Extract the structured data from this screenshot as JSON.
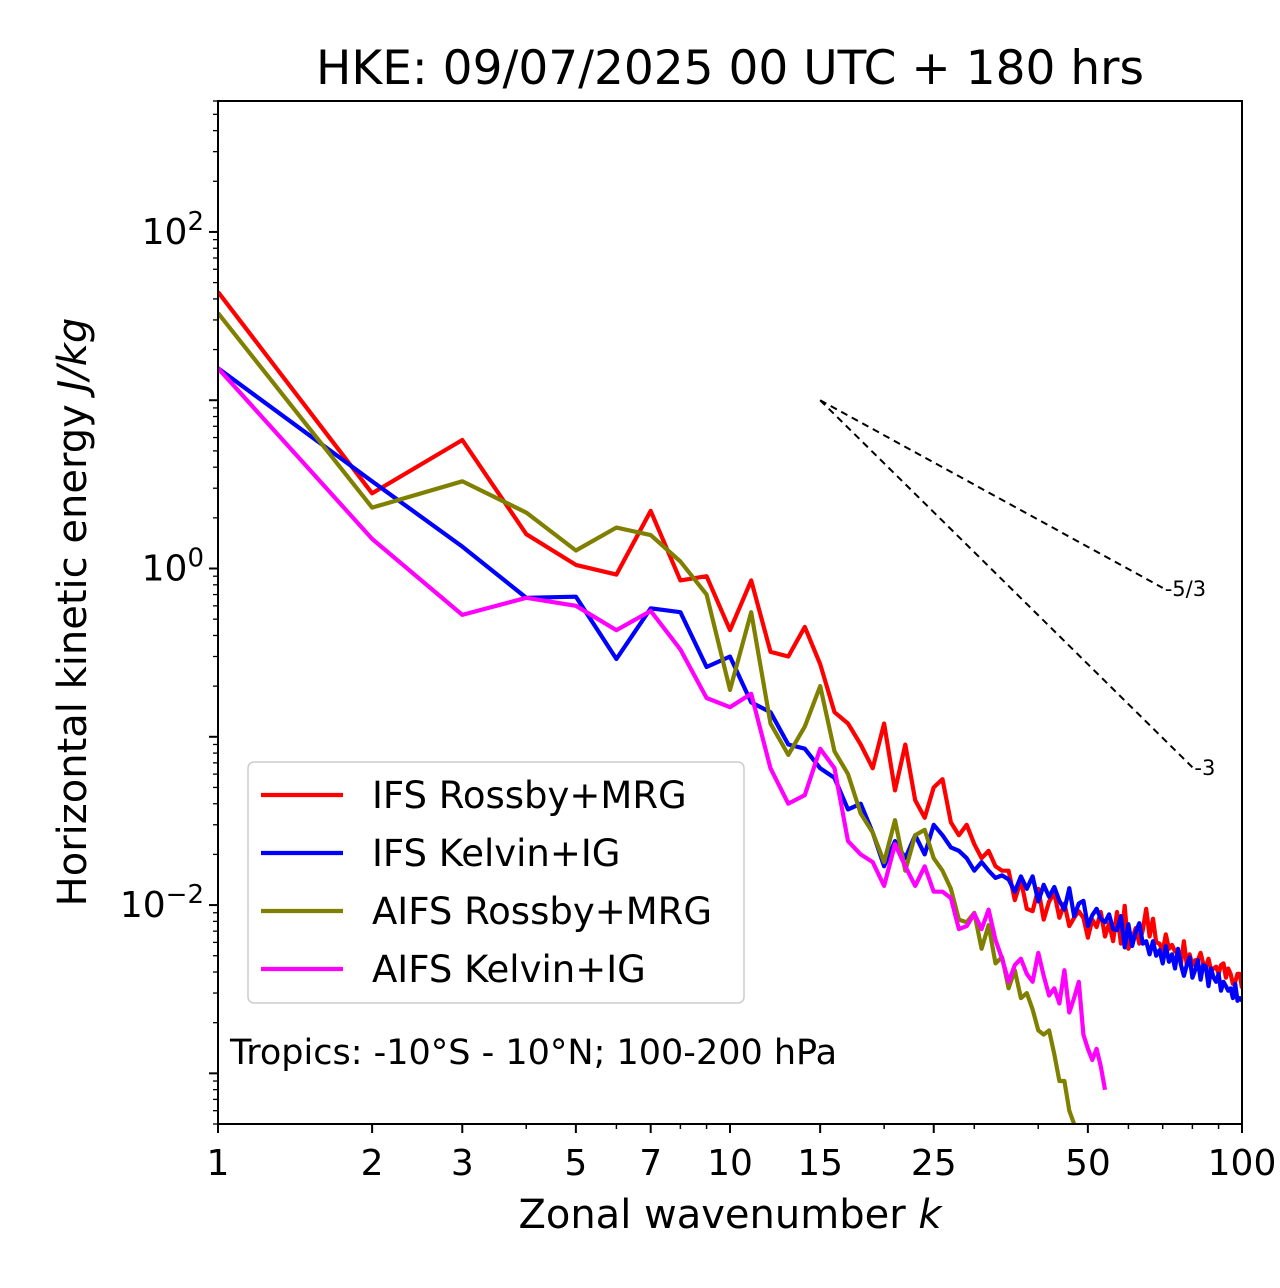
{
  "chart_data": {
    "type": "line",
    "title": "HKE: 09/07/2025 00 UTC + 180 hrs",
    "xlabel": "Zonal wavenumber",
    "xlabel_var": "k",
    "ylabel": "Horizontal kinetic energy",
    "ylabel_unit": "J/kg",
    "xscale": "log",
    "yscale": "log",
    "xlim": [
      1,
      100
    ],
    "ylim": [
      0.0005,
      600
    ],
    "x_ticks": [
      {
        "value": 1,
        "label": "1"
      },
      {
        "value": 2,
        "label": "2"
      },
      {
        "value": 3,
        "label": "3"
      },
      {
        "value": 5,
        "label": "5"
      },
      {
        "value": 7,
        "label": "7"
      },
      {
        "value": 10,
        "label": "10"
      },
      {
        "value": 15,
        "label": "15"
      },
      {
        "value": 25,
        "label": "25"
      },
      {
        "value": 50,
        "label": "50"
      },
      {
        "value": 100,
        "label": "100"
      }
    ],
    "y_ticks": [
      {
        "value": 100,
        "base": "10",
        "exp": "2"
      },
      {
        "value": 1,
        "base": "10",
        "exp": "0"
      },
      {
        "value": 0.01,
        "base": "10",
        "exp": "−2"
      }
    ],
    "annotation": "Tropics: -10°S - 10°N; 100-200 hPa",
    "grid": false,
    "legend_position": "lower-left",
    "reference_slopes": [
      {
        "label": "-5/3",
        "slope": -1.6667,
        "x_start": 15,
        "x_end": 70,
        "y_start": 10
      },
      {
        "label": "-3",
        "slope": -3,
        "x_start": 15,
        "x_end": 80,
        "y_start": 10
      }
    ],
    "series": [
      {
        "name": "IFS Rossby+MRG",
        "color": "#ff0000",
        "x": [
          1,
          2,
          3,
          4,
          5,
          6,
          7,
          8,
          9,
          10,
          11,
          12,
          13,
          14,
          15,
          16,
          17,
          18,
          19,
          20,
          21,
          22,
          23,
          24,
          25,
          26,
          27,
          28,
          29,
          30,
          31,
          32,
          33,
          34,
          35,
          36,
          37,
          38,
          39,
          40,
          41,
          42,
          43,
          44,
          45,
          46,
          47,
          48,
          49,
          50,
          51,
          52,
          53,
          54,
          55,
          56,
          57,
          58,
          59,
          60,
          61,
          62,
          63,
          64,
          65,
          66,
          67,
          68,
          69,
          70,
          71,
          72,
          73,
          74,
          75,
          76,
          77,
          78,
          79,
          80,
          81,
          82,
          83,
          84,
          85,
          86,
          87,
          88,
          89,
          90,
          91,
          92,
          93,
          94,
          95,
          96,
          97,
          98,
          99,
          100
        ],
        "y": [
          44,
          2.8,
          5.8,
          1.6,
          1.05,
          0.92,
          2.2,
          0.85,
          0.9,
          0.43,
          0.85,
          0.32,
          0.3,
          0.45,
          0.27,
          0.14,
          0.12,
          0.09,
          0.065,
          0.12,
          0.048,
          0.09,
          0.042,
          0.033,
          0.05,
          0.056,
          0.031,
          0.026,
          0.03,
          0.023,
          0.019,
          0.021,
          0.017,
          0.016,
          0.016,
          0.0107,
          0.014,
          0.0095,
          0.0092,
          0.0125,
          0.0082,
          0.0105,
          0.0118,
          0.0084,
          0.0102,
          0.0075,
          0.0084,
          0.0092,
          0.0084,
          0.0064,
          0.0082,
          0.0074,
          0.0091,
          0.0065,
          0.0078,
          0.0061,
          0.0091,
          0.0059,
          0.0099,
          0.0055,
          0.0063,
          0.0073,
          0.0059,
          0.0071,
          0.0095,
          0.0065,
          0.0083,
          0.006,
          0.0059,
          0.0053,
          0.0067,
          0.0055,
          0.0058,
          0.0053,
          0.0052,
          0.0045,
          0.0061,
          0.0044,
          0.0051,
          0.0044,
          0.0047,
          0.0047,
          0.0052,
          0.0045,
          0.0043,
          0.0048,
          0.0041,
          0.0042,
          0.0043,
          0.0039,
          0.0044,
          0.0045,
          0.0037,
          0.0042,
          0.0039,
          0.0034,
          0.0035,
          0.0039,
          0.0039,
          0.0032
        ]
      },
      {
        "name": "IFS Kelvin+IG",
        "color": "#0000ff",
        "x": [
          1,
          2,
          3,
          4,
          5,
          6,
          7,
          8,
          9,
          10,
          11,
          12,
          13,
          14,
          15,
          16,
          17,
          18,
          19,
          20,
          21,
          22,
          23,
          24,
          25,
          26,
          27,
          28,
          29,
          30,
          31,
          32,
          33,
          34,
          35,
          36,
          37,
          38,
          39,
          40,
          41,
          42,
          43,
          44,
          45,
          46,
          47,
          48,
          49,
          50,
          51,
          52,
          53,
          54,
          55,
          56,
          57,
          58,
          59,
          60,
          61,
          62,
          63,
          64,
          65,
          66,
          67,
          68,
          69,
          70,
          71,
          72,
          73,
          74,
          75,
          76,
          77,
          78,
          79,
          80,
          81,
          82,
          83,
          84,
          85,
          86,
          87,
          88,
          89,
          90,
          91,
          92,
          93,
          94,
          95,
          96,
          97,
          98,
          99,
          100
        ],
        "y": [
          15.5,
          3.3,
          1.35,
          0.67,
          0.68,
          0.29,
          0.58,
          0.55,
          0.26,
          0.3,
          0.16,
          0.14,
          0.09,
          0.085,
          0.065,
          0.057,
          0.037,
          0.04,
          0.027,
          0.017,
          0.024,
          0.019,
          0.026,
          0.02,
          0.03,
          0.026,
          0.022,
          0.021,
          0.019,
          0.016,
          0.018,
          0.016,
          0.0145,
          0.015,
          0.0142,
          0.012,
          0.0148,
          0.0125,
          0.0148,
          0.0105,
          0.0132,
          0.0112,
          0.0128,
          0.0106,
          0.0094,
          0.0126,
          0.0086,
          0.0102,
          0.0106,
          0.0075,
          0.0087,
          0.0095,
          0.0083,
          0.0079,
          0.0088,
          0.0072,
          0.0071,
          0.0086,
          0.0056,
          0.0077,
          0.0057,
          0.0069,
          0.0078,
          0.0059,
          0.0061,
          0.0051,
          0.0061,
          0.005,
          0.0054,
          0.0045,
          0.0057,
          0.0046,
          0.0051,
          0.0042,
          0.0055,
          0.0044,
          0.0038,
          0.0044,
          0.0049,
          0.0037,
          0.0041,
          0.0047,
          0.0036,
          0.0044,
          0.0043,
          0.0033,
          0.0042,
          0.0037,
          0.0035,
          0.0039,
          0.0031,
          0.0035,
          0.0033,
          0.0031,
          0.0032,
          0.0028,
          0.0034,
          0.0027,
          0.0028,
          0.0027
        ]
      },
      {
        "name": "AIFS Rossby+MRG",
        "color": "#808000",
        "x": [
          1,
          2,
          3,
          4,
          5,
          6,
          7,
          8,
          9,
          10,
          11,
          12,
          13,
          14,
          15,
          16,
          17,
          18,
          19,
          20,
          21,
          22,
          23,
          24,
          25,
          26,
          27,
          28,
          29,
          30,
          31,
          32,
          33,
          34,
          35,
          36,
          37,
          38,
          39,
          40,
          41,
          42,
          43,
          44,
          45,
          46,
          47
        ],
        "y": [
          33,
          2.3,
          3.3,
          2.15,
          1.28,
          1.75,
          1.58,
          1.1,
          0.7,
          0.19,
          0.55,
          0.12,
          0.078,
          0.115,
          0.2,
          0.082,
          0.06,
          0.035,
          0.027,
          0.018,
          0.032,
          0.016,
          0.026,
          0.028,
          0.019,
          0.016,
          0.0125,
          0.0082,
          0.0079,
          0.009,
          0.0055,
          0.0076,
          0.0045,
          0.0049,
          0.0032,
          0.0041,
          0.0028,
          0.003,
          0.0024,
          0.0018,
          0.0017,
          0.0018,
          0.0013,
          0.0009,
          0.0009,
          0.0006,
          0.0005
        ]
      },
      {
        "name": "AIFS Kelvin+IG",
        "color": "#ff00ff",
        "x": [
          1,
          2,
          3,
          4,
          5,
          6,
          7,
          8,
          9,
          10,
          11,
          12,
          13,
          14,
          15,
          16,
          17,
          18,
          19,
          20,
          21,
          22,
          23,
          24,
          25,
          26,
          27,
          28,
          29,
          30,
          31,
          32,
          33,
          34,
          35,
          36,
          37,
          38,
          39,
          40,
          41,
          42,
          43,
          44,
          45,
          46,
          47,
          48,
          49,
          50,
          51,
          52,
          53,
          54
        ],
        "y": [
          15.5,
          1.5,
          0.53,
          0.67,
          0.6,
          0.43,
          0.56,
          0.33,
          0.17,
          0.15,
          0.18,
          0.065,
          0.04,
          0.045,
          0.085,
          0.065,
          0.024,
          0.02,
          0.018,
          0.013,
          0.023,
          0.017,
          0.013,
          0.017,
          0.012,
          0.012,
          0.011,
          0.0072,
          0.0075,
          0.0089,
          0.0072,
          0.0094,
          0.0062,
          0.0048,
          0.0035,
          0.0044,
          0.0048,
          0.0039,
          0.0035,
          0.0052,
          0.0038,
          0.0029,
          0.0032,
          0.0026,
          0.0041,
          0.0023,
          0.0028,
          0.0035,
          0.0017,
          0.0014,
          0.0012,
          0.0014,
          0.0011,
          0.0008
        ]
      }
    ]
  }
}
